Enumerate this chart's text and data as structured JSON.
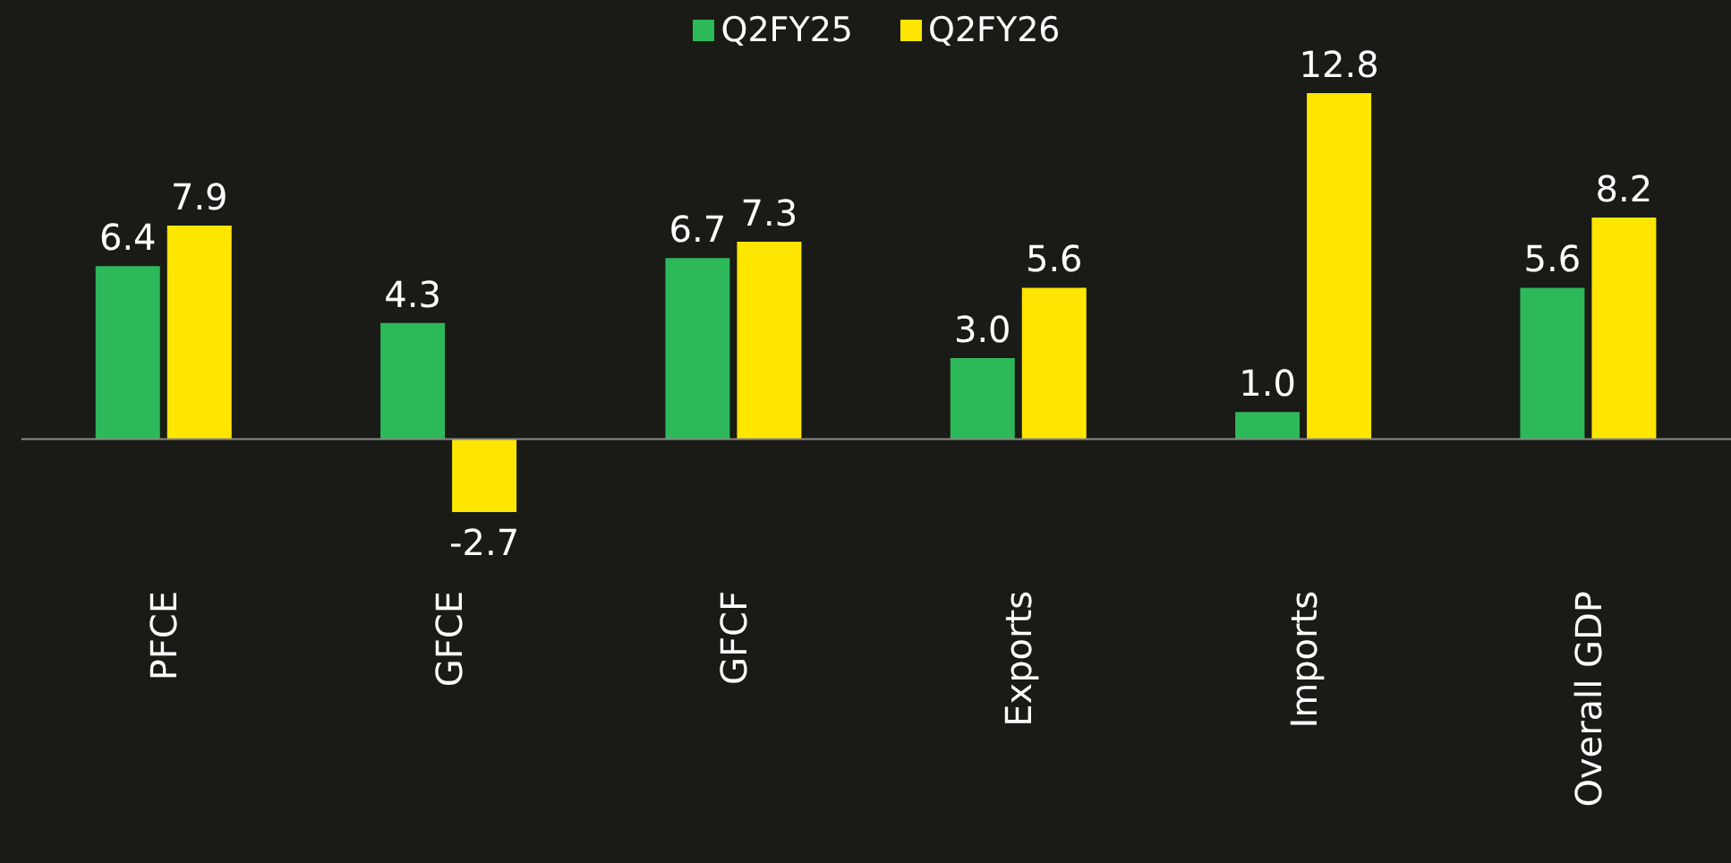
{
  "chart_data": {
    "type": "bar",
    "categories": [
      "PFCE",
      "GFCE",
      "GFCF",
      "Exports",
      "Imports",
      "Overall GDP"
    ],
    "series": [
      {
        "name": "Q2FY25",
        "color": "#2db85a",
        "values": [
          6.4,
          4.3,
          6.7,
          3.0,
          1.0,
          5.6
        ],
        "value_labels": [
          "6.4",
          "4.3",
          "6.7",
          "3.0",
          "1.0",
          "5.6"
        ]
      },
      {
        "name": "Q2FY26",
        "color": "#ffe600",
        "values": [
          7.9,
          -2.7,
          7.3,
          5.6,
          12.8,
          8.2
        ],
        "value_labels": [
          "7.9",
          "-2.7",
          "7.3",
          "5.6",
          "12.8",
          "8.2"
        ]
      }
    ],
    "tick_labels": "x",
    "legend": "top"
  }
}
